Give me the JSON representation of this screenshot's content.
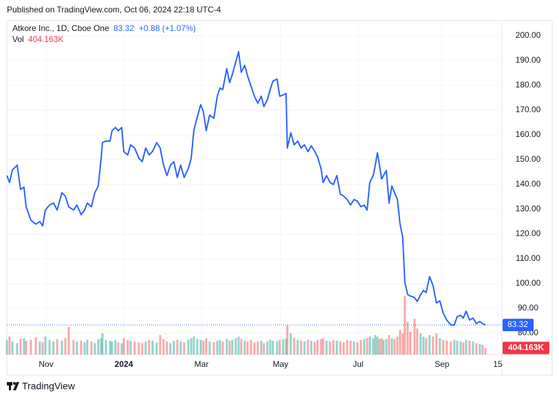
{
  "chart_data": {
    "type": "line",
    "published": "Published on TradingView.com, Oct 06, 2024 22:18 UTC-4",
    "symbol": "Atkore Inc., 1D, Cboe One",
    "change": "+0.88 (+1.07%)",
    "brand": "TradingView",
    "color": "#2962ff",
    "grid": true,
    "xlim": [
      0,
      260
    ],
    "ylim": [
      71.4,
      204.7
    ],
    "xticks": [
      {
        "value": 20.6,
        "label": "Nov"
      },
      {
        "value": 61.4,
        "label": "2024"
      },
      {
        "value": 102.2,
        "label": "Mar"
      },
      {
        "value": 143.7,
        "label": "May"
      },
      {
        "value": 184.5,
        "label": "Jul"
      },
      {
        "value": 228.5,
        "label": "Sep"
      },
      {
        "value": 257.8,
        "label": "15"
      }
    ],
    "yticks": [
      {
        "value": 80,
        "label": "80.00"
      },
      {
        "value": 90,
        "label": "90.00"
      },
      {
        "value": 100,
        "label": "100.00"
      },
      {
        "value": 110,
        "label": "110.00"
      },
      {
        "value": 120,
        "label": "120.00"
      },
      {
        "value": 130,
        "label": "130.00"
      },
      {
        "value": 140,
        "label": "140.00"
      },
      {
        "value": 150,
        "label": "150.00"
      },
      {
        "value": 160,
        "label": "160.00"
      },
      {
        "value": 170,
        "label": "170.00"
      },
      {
        "value": 180,
        "label": "180.00"
      },
      {
        "value": 190,
        "label": "190.00"
      },
      {
        "value": 200,
        "label": "200.00"
      }
    ],
    "x": [
      0,
      1.4,
      2.9,
      5.4,
      7.2,
      9,
      10.1,
      12.6,
      15.2,
      17.3,
      18.8,
      20.2,
      22.4,
      24.5,
      26.4,
      28.9,
      30.7,
      32.5,
      35,
      36.8,
      39,
      40.8,
      42.2,
      44.4,
      46.2,
      48,
      49.5,
      50.2,
      52,
      54.2,
      55.2,
      57,
      58.5,
      60.3,
      61.4,
      63.5,
      65,
      67.1,
      69.3,
      71.1,
      72.9,
      74.7,
      76.5,
      78.7,
      80.5,
      82.3,
      84.1,
      85.9,
      87.7,
      89.5,
      91.3,
      93.1,
      95.3,
      96.8,
      98.2,
      100,
      101.8,
      103.2,
      104.7,
      106.5,
      108.7,
      110.5,
      111.9,
      113.4,
      115.5,
      117,
      118.4,
      120.2,
      121.7,
      123.1,
      124.9,
      126.4,
      128.2,
      130,
      131.8,
      133.6,
      135,
      136.8,
      138.3,
      139.7,
      141.9,
      143.3,
      145.1,
      146.6,
      147.3,
      149.1,
      150.9,
      152.7,
      154.5,
      156.3,
      158.1,
      159.9,
      161.7,
      163.2,
      165,
      166.1,
      167.9,
      169.7,
      171.5,
      173.3,
      175.1,
      176.9,
      178.7,
      180.5,
      182.3,
      184.1,
      185.9,
      187.7,
      189.2,
      190.6,
      192.4,
      193.5,
      194.6,
      195.7,
      196.8,
      197.8,
      199.3,
      200.7,
      202.2,
      203.6,
      205.1,
      206.5,
      207.9,
      209,
      210.5,
      211.9,
      214.1,
      215.5,
      217.3,
      218.8,
      220.2,
      222,
      223.8,
      225.6,
      227.4,
      229.2,
      231,
      233.2,
      235,
      236.5,
      238.3,
      239.7,
      241.2,
      243,
      244.8,
      246.6,
      248.4,
      249.8,
      251.3
    ],
    "values": [
      143.6,
      140.8,
      145.8,
      147.8,
      138,
      138.9,
      131,
      125.6,
      124,
      125,
      123.3,
      129.7,
      131.7,
      132.5,
      129.7,
      136.7,
      135.3,
      131,
      129.7,
      131.7,
      127.8,
      129.7,
      132.5,
      131,
      136.7,
      139.4,
      150.6,
      156.9,
      157.5,
      157.5,
      161.7,
      163,
      161.7,
      163,
      153.3,
      151.9,
      156,
      154.7,
      150.6,
      149.2,
      154.7,
      151.9,
      153.3,
      156.9,
      154.7,
      147.8,
      143.6,
      147.8,
      149.2,
      142.8,
      147.8,
      142.8,
      146.4,
      150.6,
      161.7,
      167.2,
      172.2,
      169.4,
      161.7,
      168,
      166.7,
      175.6,
      178.9,
      178.3,
      186.7,
      181.1,
      184.4,
      189.4,
      193.6,
      185.3,
      188,
      183.9,
      179.7,
      175.6,
      172.8,
      175.6,
      171.4,
      174.2,
      178.3,
      181.7,
      182.5,
      175.6,
      176.1,
      176.7,
      154.7,
      160.8,
      156,
      157.5,
      154.7,
      156,
      153.3,
      155.6,
      153.3,
      151.1,
      146.4,
      140.8,
      143.6,
      140.8,
      140,
      143.6,
      136.1,
      135.3,
      133.9,
      131.7,
      133.9,
      133.3,
      131,
      131.7,
      129.7,
      140.8,
      143.6,
      147.8,
      152.8,
      147.8,
      142.2,
      143.6,
      145.6,
      132.5,
      139.4,
      136.7,
      133.9,
      124.2,
      118.6,
      100.6,
      95.6,
      95,
      94.4,
      92.8,
      95.6,
      97.2,
      96.4,
      102.8,
      99.2,
      92.2,
      93,
      88,
      85.3,
      83.3,
      83.3,
      86.7,
      87.2,
      86.1,
      88.9,
      85.3,
      86.1,
      83.9,
      84.7,
      83.9,
      83.32
    ],
    "volume": {
      "label": "Vol",
      "up_color": "rgba(38,166,154,0.5)",
      "down_color": "rgba(239,83,80,0.5)",
      "box_color": "#f23645",
      "last_value_label": "404.163K",
      "values": [
        900000,
        1100000,
        800000,
        700000,
        950000,
        1000000,
        850000,
        900000,
        1050000,
        800000,
        750000,
        1100000,
        900000,
        800000,
        950000,
        850000,
        1000000,
        1700000,
        900000,
        800000,
        850000,
        750000,
        900000,
        800000,
        700000,
        950000,
        1000000,
        1300000,
        900000,
        850000,
        800000,
        900000,
        750000,
        700000,
        1000000,
        900000,
        850000,
        800000,
        750000,
        700000,
        800000,
        900000,
        850000,
        750000,
        1200000,
        950000,
        800000,
        700000,
        850000,
        900000,
        800000,
        750000,
        900000,
        1000000,
        1100000,
        950000,
        900000,
        850000,
        1000000,
        800000,
        750000,
        850000,
        900000,
        800000,
        950000,
        850000,
        900000,
        1000000,
        1100000,
        950000,
        850000,
        800000,
        900000,
        750000,
        800000,
        850000,
        700000,
        800000,
        900000,
        850000,
        800000,
        900000,
        950000,
        1000000,
        1800000,
        1300000,
        1000000,
        900000,
        850000,
        800000,
        900000,
        850000,
        800000,
        900000,
        950000,
        1000000,
        850000,
        800000,
        900000,
        850000,
        800000,
        750000,
        900000,
        850000,
        800000,
        750000,
        900000,
        950000,
        1000000,
        1100000,
        1000000,
        1200000,
        1100000,
        950000,
        1000000,
        900000,
        950000,
        1200000,
        1000000,
        950000,
        1100000,
        1500000,
        1300000,
        3600000,
        2000000,
        1400000,
        2200000,
        1600000,
        1300000,
        1100000,
        1000000,
        1200000,
        1100000,
        1300000,
        1000000,
        900000,
        850000,
        800000,
        900000,
        850000,
        800000,
        750000,
        900000,
        850000,
        800000,
        700000,
        650000,
        600000,
        404163
      ]
    }
  }
}
